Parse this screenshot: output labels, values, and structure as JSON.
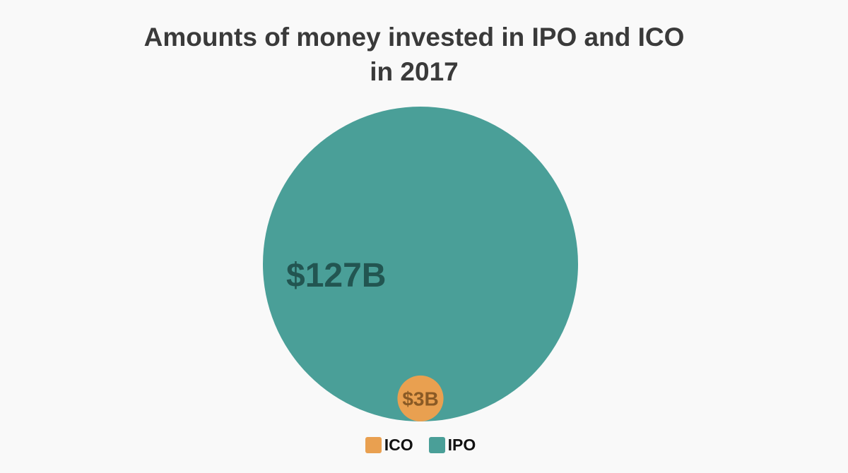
{
  "chart_data": {
    "type": "bubble",
    "title_lines": [
      "Amounts of money invested in IPO and ICO",
      "in 2017"
    ],
    "unit": "billion USD",
    "series": [
      {
        "name": "IPO",
        "value": 127,
        "label": "$127B",
        "color": "#4a9f98",
        "label_color": "#225551"
      },
      {
        "name": "ICO",
        "value": 3,
        "label": "$3B",
        "color": "#e9a050",
        "label_color": "#8a5a25"
      }
    ],
    "legend": {
      "position": "bottom-center",
      "items": [
        {
          "name": "ICO",
          "color": "#e9a050"
        },
        {
          "name": "IPO",
          "color": "#4a9f98"
        }
      ]
    }
  }
}
